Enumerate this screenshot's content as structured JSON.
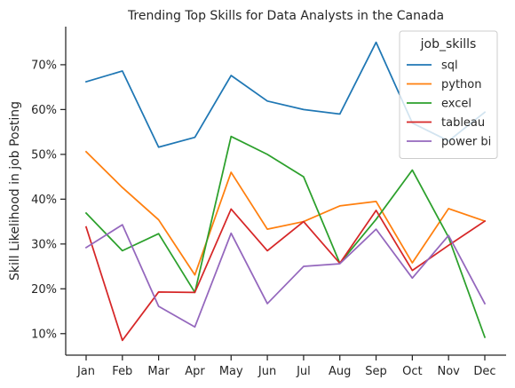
{
  "chart_data": {
    "type": "line",
    "title": "Trending Top Skills for Data Analysts in the Canada",
    "xlabel": "",
    "ylabel": "Skill Likelihood in job Posting",
    "categories": [
      "Jan",
      "Feb",
      "Mar",
      "Apr",
      "May",
      "Jun",
      "Jul",
      "Aug",
      "Sep",
      "Oct",
      "Nov",
      "Dec"
    ],
    "ylim": [
      5.2,
      78.5
    ],
    "yticks": [
      10,
      20,
      30,
      40,
      50,
      60,
      70
    ],
    "ytick_suffix": "%",
    "grid": false,
    "legend": {
      "title": "job_skills",
      "placement": "top-right"
    },
    "series": [
      {
        "name": "sql",
        "color": "#1f77b4",
        "values": [
          66.2,
          68.6,
          51.6,
          53.8,
          67.6,
          61.9,
          60.0,
          59.0,
          75.0,
          57.0,
          53.0,
          59.4
        ]
      },
      {
        "name": "python",
        "color": "#ff7f0e",
        "values": [
          50.6,
          42.6,
          35.4,
          23.1,
          46.0,
          33.3,
          35.0,
          38.5,
          39.5,
          25.8,
          37.9,
          35.1
        ]
      },
      {
        "name": "excel",
        "color": "#2ca02c",
        "values": [
          36.9,
          28.5,
          32.3,
          19.2,
          54.0,
          50.0,
          45.0,
          25.7,
          35.5,
          46.5,
          31.5,
          9.2
        ]
      },
      {
        "name": "tableau",
        "color": "#d62728",
        "values": [
          33.8,
          8.5,
          19.3,
          19.2,
          37.8,
          28.5,
          35.0,
          25.7,
          37.5,
          24.1,
          29.7,
          35.1
        ]
      },
      {
        "name": "power bi",
        "color": "#9467bd",
        "values": [
          29.2,
          34.3,
          16.1,
          11.5,
          32.4,
          16.7,
          25.0,
          25.6,
          33.3,
          22.4,
          31.9,
          16.7
        ]
      }
    ]
  }
}
